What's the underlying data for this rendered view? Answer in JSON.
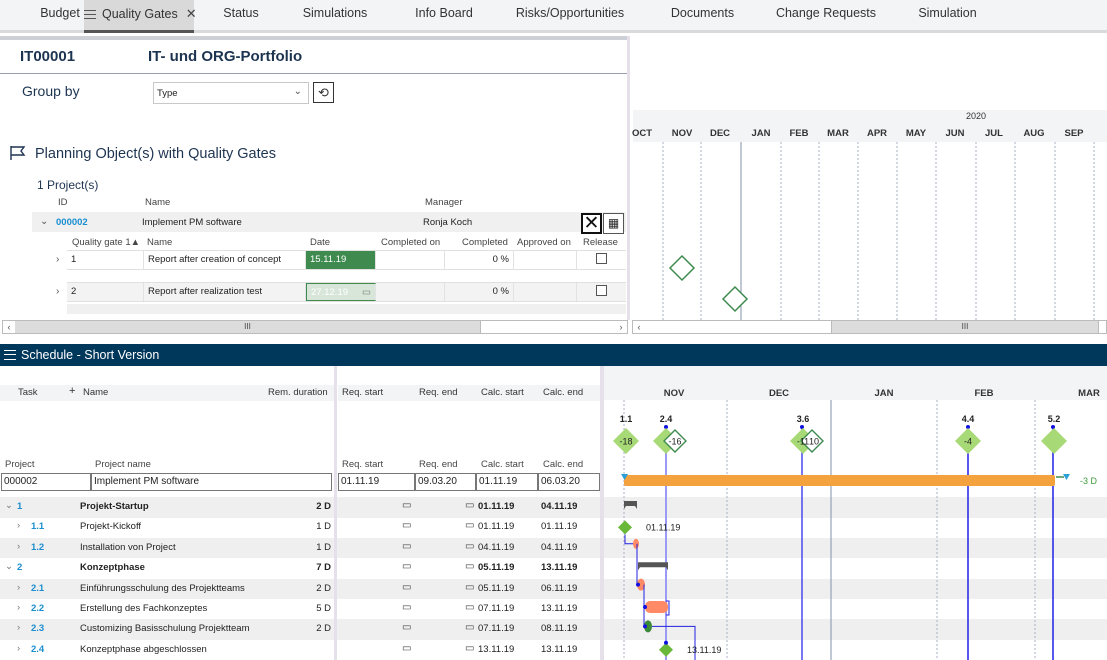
{
  "tabs": [
    {
      "label": "Budget",
      "active": false
    },
    {
      "label": "Quality Gates",
      "active": true,
      "closable": true
    },
    {
      "label": "Status",
      "active": false
    },
    {
      "label": "Simulations",
      "active": false
    },
    {
      "label": "Info Board",
      "active": false
    },
    {
      "label": "Risks/Opportunities",
      "active": false
    },
    {
      "label": "Documents",
      "active": false
    },
    {
      "label": "Change Requests",
      "active": false
    },
    {
      "label": "Simulation",
      "active": false
    }
  ],
  "portfolio": {
    "id": "IT00001",
    "title": "IT- und ORG-Portfolio"
  },
  "group_by": {
    "label": "Group by",
    "value": "Type",
    "refresh_icon": "refresh-icon"
  },
  "planning": {
    "section_title": "Planning Object(s) with Quality Gates",
    "section_icon": "flag-icon",
    "count_label": "1 Project(s)",
    "columns": {
      "id": "ID",
      "name": "Name",
      "manager": "Manager"
    },
    "project": {
      "id": "000002",
      "name": "Implement PM software",
      "manager": "Ronja Koch"
    },
    "qg_columns": {
      "gate": "Quality gate 1▲",
      "name": "Name",
      "date": "Date",
      "completed_on": "Completed on",
      "completed": "Completed",
      "approved_on": "Approved on",
      "release": "Release"
    },
    "quality_gates": [
      {
        "gate": "1",
        "name": "Report after creation of concept",
        "date": "15.11.19",
        "completed_on": "",
        "completed": "0 %",
        "approved_on": "",
        "release": false,
        "date_state": "active"
      },
      {
        "gate": "2",
        "name": "Report after realization test",
        "date": "27.12.19",
        "completed_on": "",
        "completed": "0 %",
        "approved_on": "",
        "release": false,
        "date_state": "inactive"
      }
    ]
  },
  "top_timeline": {
    "year_label": "2020",
    "months": [
      "OCT",
      "NOV",
      "DEC",
      "JAN",
      "FEB",
      "MAR",
      "APR",
      "MAY",
      "JUN",
      "JUL",
      "AUG",
      "SEP"
    ]
  },
  "schedule": {
    "title": "Schedule - Short Version",
    "columns": {
      "task": "Task",
      "add": "+",
      "name": "Name",
      "rem_duration": "Rem. duration",
      "req_start": "Req. start",
      "req_end": "Req. end",
      "calc_start": "Calc. start",
      "calc_end": "Calc. end"
    },
    "project_columns": {
      "project": "Project",
      "project_name": "Project name",
      "req_start": "Req. start",
      "req_end": "Req. end",
      "calc_start": "Calc. start",
      "calc_end": "Calc. end"
    },
    "project": {
      "project": "000002",
      "project_name": "Implement PM software",
      "req_start": "01.11.19",
      "req_end": "09.03.20",
      "calc_start": "01.11.19",
      "calc_end": "06.03.20"
    },
    "tasks": [
      {
        "task": "1",
        "name": "Projekt-Startup",
        "rem": "2 D",
        "calc_start": "01.11.19",
        "calc_end": "04.11.19",
        "bold": true,
        "level": 0
      },
      {
        "task": "1.1",
        "name": "Projekt-Kickoff",
        "rem": "1 D",
        "calc_start": "01.11.19",
        "calc_end": "01.11.19",
        "bold": false,
        "level": 1
      },
      {
        "task": "1.2",
        "name": "Installation von Project",
        "rem": "1 D",
        "calc_start": "04.11.19",
        "calc_end": "04.11.19",
        "bold": false,
        "level": 1
      },
      {
        "task": "2",
        "name": "Konzeptphase",
        "rem": "7 D",
        "calc_start": "05.11.19",
        "calc_end": "13.11.19",
        "bold": true,
        "level": 0
      },
      {
        "task": "2.1",
        "name": "Einführungsschulung des Projektteams",
        "rem": "2 D",
        "calc_start": "05.11.19",
        "calc_end": "06.11.19",
        "bold": false,
        "level": 1
      },
      {
        "task": "2.2",
        "name": "Erstellung des Fachkonzeptes",
        "rem": "5 D",
        "calc_start": "07.11.19",
        "calc_end": "13.11.19",
        "bold": false,
        "level": 1
      },
      {
        "task": "2.3",
        "name": "Customizing Basisschulung Projektteam",
        "rem": "2 D",
        "calc_start": "07.11.19",
        "calc_end": "08.11.19",
        "bold": false,
        "level": 1
      },
      {
        "task": "2.4",
        "name": "Konzeptphase abgeschlossen",
        "rem": "",
        "calc_start": "13.11.19",
        "calc_end": "13.11.19",
        "bold": false,
        "level": 1
      }
    ],
    "gantt": {
      "months": [
        "NOV",
        "DEC",
        "JAN",
        "FEB",
        "MAR"
      ],
      "milestones": [
        {
          "label": "1.1",
          "value": "-18"
        },
        {
          "label": "2.4",
          "value": "-16"
        },
        {
          "label": "3.6",
          "value": "-11",
          "secondary_value": "10"
        },
        {
          "label": "4.4",
          "value": "-4"
        },
        {
          "label": "5.2",
          "value": ""
        }
      ],
      "project_bar_label": "-3 D",
      "milestone_dates": {
        "1.1": "01.11.19",
        "2.4": "13.11.19"
      }
    }
  },
  "colors": {
    "tab_bg": "#f3f4f6",
    "schedule_bar": "#00385c",
    "project_bar": "#f4a23d",
    "milestone": "#a8d977",
    "gate_outline": "#3f8a4e",
    "link_blue": "#1a8ed0",
    "task_bar": "#ff8a65",
    "summary_bar": "#555555"
  }
}
